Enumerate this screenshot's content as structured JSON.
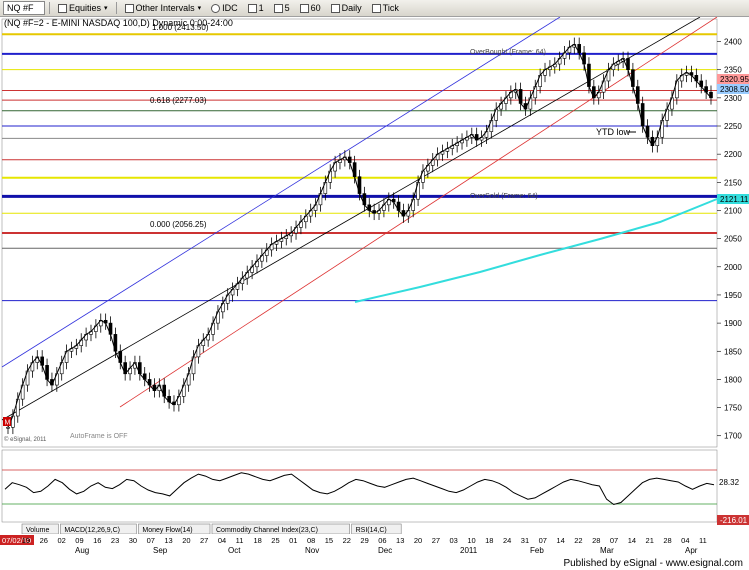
{
  "toolbar": {
    "symbol_input": "NQ #F",
    "items": [
      "Equities",
      "Other Intervals",
      "IDC",
      "1",
      "5",
      "60",
      "Daily",
      "Tick"
    ]
  },
  "chart_data": [
    {
      "type": "line",
      "title": "(NQ #F=2 - E-MINI NASDAQ 100,D) Dynamic 0:00-24:00",
      "ylim": [
        1680,
        2440
      ],
      "y_ticks": [
        1700,
        1750,
        1800,
        1850,
        1900,
        1950,
        2000,
        2050,
        2100,
        2150,
        2200,
        2250,
        2300,
        2350,
        2400
      ],
      "series": [
        {
          "values": [
            1715,
            1735,
            1765,
            1790,
            1815,
            1830,
            1840,
            1825,
            1800,
            1790,
            1810,
            1830,
            1850,
            1855,
            1860,
            1870,
            1880,
            1885,
            1895,
            1905,
            1900,
            1880,
            1850,
            1830,
            1810,
            1820,
            1830,
            1810,
            1800,
            1790,
            1780,
            1790,
            1770,
            1760,
            1755,
            1770,
            1790,
            1810,
            1840,
            1860,
            1870,
            1880,
            1900,
            1920,
            1935,
            1950,
            1960,
            1970,
            1980,
            1990,
            2000,
            2010,
            2020,
            2030,
            2040,
            2045,
            2050,
            2055,
            2060,
            2070,
            2080,
            2090,
            2100,
            2110,
            2130,
            2150,
            2170,
            2185,
            2190,
            2195,
            2185,
            2160,
            2130,
            2110,
            2100,
            2095,
            2100,
            2110,
            2120,
            2115,
            2100,
            2090,
            2100,
            2120,
            2150,
            2170,
            2180,
            2190,
            2200,
            2205,
            2210,
            2215,
            2220,
            2225,
            2230,
            2235,
            2225,
            2230,
            2240,
            2260,
            2280,
            2290,
            2300,
            2310,
            2315,
            2290,
            2280,
            2300,
            2320,
            2340,
            2350,
            2355,
            2360,
            2370,
            2380,
            2390,
            2395,
            2380,
            2360,
            2320,
            2300,
            2310,
            2330,
            2350,
            2360,
            2365,
            2370,
            2350,
            2320,
            2290,
            2250,
            2230,
            2215,
            2230,
            2260,
            2280,
            2300,
            2330,
            2340,
            2345,
            2340,
            2330,
            2320,
            2310,
            2300
          ]
        }
      ],
      "price_labels": {
        "upper": "2320.95",
        "lower": "2308.50",
        "mid": "2121.11"
      },
      "annotations": {
        "fib_1000": "1.000 (2413.50)",
        "fib_0618": "0.618 (2277.03)",
        "fib_0000": "0.000 (2056.25)",
        "overbought": "OverBought (Frame: 64)",
        "oversold": "OverSold (Frame: 64)",
        "ytd_low": "YTD low",
        "autoframe": "AutoFrame is OFF",
        "copyright": "© eSignal, 2011",
        "m_marker": "M"
      },
      "x_ticks": [
        "07/02/10",
        "19",
        "26",
        "02",
        "09",
        "16",
        "23",
        "30",
        "07",
        "13",
        "20",
        "27",
        "04",
        "11",
        "18",
        "25",
        "01",
        "08",
        "15",
        "22",
        "29",
        "06",
        "13",
        "20",
        "27",
        "03",
        "10",
        "18",
        "24",
        "31",
        "07",
        "14",
        "22",
        "28",
        "07",
        "14",
        "21",
        "28",
        "04",
        "11"
      ],
      "month_labels": [
        "Aug",
        "Sep",
        "Oct",
        "Nov",
        "Dec",
        "2011",
        "Feb",
        "Mar",
        "Apr"
      ]
    },
    {
      "type": "line",
      "ylim": [
        0,
        100
      ],
      "series": [
        {
          "values": [
            45,
            55,
            52,
            48,
            40,
            42,
            50,
            60,
            55,
            45,
            38,
            42,
            50,
            55,
            48,
            46,
            52,
            60,
            58,
            50,
            44,
            40,
            38,
            35,
            45,
            55,
            62,
            68,
            65,
            60,
            58,
            62,
            66,
            70,
            68,
            64,
            60,
            58,
            62,
            66,
            68,
            60,
            52,
            44,
            40,
            38,
            42,
            48,
            55,
            60,
            58,
            54,
            50,
            48,
            52,
            56,
            60,
            62,
            58,
            54,
            50,
            46,
            42,
            40,
            44,
            50,
            56,
            60,
            58,
            54,
            48,
            40,
            35,
            30,
            32,
            38,
            44,
            50,
            56,
            60,
            58,
            55,
            52,
            50,
            30,
            22,
            25,
            35,
            45,
            55,
            60,
            62,
            60,
            58,
            56,
            50,
            45,
            50,
            54,
            52
          ]
        }
      ],
      "price_labels": {
        "value": "28.32",
        "cci": "-216.01"
      }
    }
  ],
  "study_tabs": [
    "Volume",
    "MACD(12,26,9,C)",
    "Money Flow(14)",
    "Commodity Channel Index(23,C)",
    "RSI(14,C)"
  ],
  "footer": {
    "text": "Published by eSignal - www.esignal.com"
  }
}
